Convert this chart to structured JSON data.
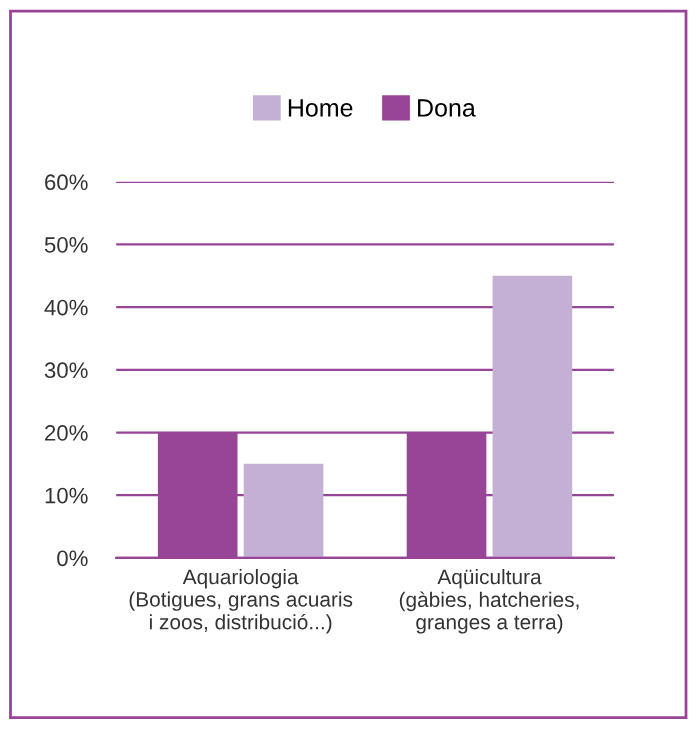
{
  "chart_data": {
    "type": "bar",
    "categories": [
      "Aquariologia\n(Botigues, grans acuaris\ni zoos, distribució...)",
      "Aqüicultura\n(gàbies, hatcheries,\ngranges a terra)"
    ],
    "series": [
      {
        "name": "Dona",
        "color": "#984497",
        "values": [
          20,
          20
        ]
      },
      {
        "name": "Home",
        "color": "#c5b0d5",
        "values": [
          15,
          45
        ]
      }
    ],
    "ylim": [
      0,
      60
    ],
    "yticks": [
      {
        "value": 0,
        "label": "0%"
      },
      {
        "value": 10,
        "label": "10%"
      },
      {
        "value": 20,
        "label": "20%"
      },
      {
        "value": 30,
        "label": "30%"
      },
      {
        "value": 40,
        "label": "40%"
      },
      {
        "value": 50,
        "label": "50%"
      },
      {
        "value": 60,
        "label": "60%"
      }
    ],
    "grid": "y",
    "legend": "top"
  }
}
